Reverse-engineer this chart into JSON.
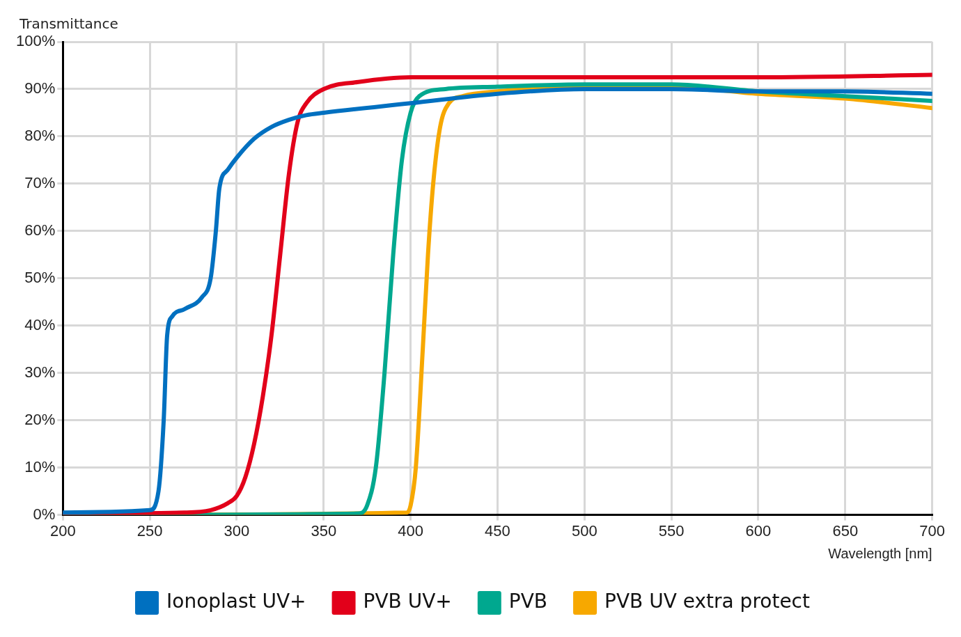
{
  "chart_data": {
    "type": "line",
    "xlabel": "Wavelength [nm]",
    "ylabel": "Transmittance",
    "xlim": [
      200,
      700
    ],
    "xticks": [
      200,
      250,
      300,
      350,
      400,
      450,
      500,
      550,
      600,
      650,
      700
    ],
    "ylim": [
      0,
      100
    ],
    "yticks": [
      {
        "value": 0,
        "label": "0%"
      },
      {
        "value": 10,
        "label": "10%"
      },
      {
        "value": 20,
        "label": "20%"
      },
      {
        "value": 30,
        "label": "30%"
      },
      {
        "value": 40,
        "label": "40%"
      },
      {
        "value": 50,
        "label": "50%"
      },
      {
        "value": 60,
        "label": "60%"
      },
      {
        "value": 70,
        "label": "70%"
      },
      {
        "value": 80,
        "label": "80%"
      },
      {
        "value": 90,
        "label": "90%"
      },
      {
        "value": 100,
        "label": "100%"
      }
    ],
    "grid": true,
    "legend": "bottom",
    "marker": "none",
    "line_style": "solid",
    "series": [
      {
        "name": "Ionoplast UV+",
        "color": "#0070c0",
        "x": [
          200,
          250,
          255,
          258,
          260,
          263,
          270,
          280,
          285,
          288,
          290,
          295,
          300,
          310,
          320,
          330,
          340,
          350,
          400,
          450,
          500,
          550,
          600,
          650,
          700
        ],
        "values": [
          0.5,
          1,
          5,
          20,
          38,
          42,
          43.5,
          46,
          50,
          60,
          69,
          73,
          75.5,
          79.5,
          82,
          83.5,
          84.5,
          85,
          87,
          89,
          90,
          90,
          89.5,
          89.5,
          89
        ]
      },
      {
        "name": "PVB UV+",
        "color": "#e2001a",
        "x": [
          200,
          270,
          285,
          295,
          300,
          305,
          310,
          315,
          320,
          325,
          330,
          335,
          340,
          350,
          370,
          400,
          450,
          500,
          600,
          700
        ],
        "values": [
          0.3,
          0.5,
          1,
          2.5,
          4,
          8,
          15,
          25,
          38,
          55,
          72,
          83,
          87,
          90,
          91.5,
          92.5,
          92.5,
          92.5,
          92.5,
          93
        ]
      },
      {
        "name": "PVB",
        "color": "#00a88f",
        "x": [
          200,
          370,
          375,
          380,
          385,
          390,
          395,
          400,
          405,
          420,
          450,
          500,
          550,
          600,
          650,
          700
        ],
        "values": [
          0,
          0.3,
          2,
          10,
          30,
          55,
          75,
          85,
          88.5,
          90,
          90.5,
          91,
          91,
          89.5,
          88.5,
          87.5
        ]
      },
      {
        "name": "PVB UV extra protect",
        "color": "#f7a800",
        "x": [
          200,
          398,
          400,
          403,
          407,
          410,
          413,
          417,
          422,
          430,
          450,
          500,
          550,
          600,
          650,
          700
        ],
        "values": [
          0,
          0.5,
          2,
          10,
          35,
          55,
          70,
          82,
          87,
          88.5,
          89.5,
          90.5,
          90.5,
          89,
          88,
          86
        ]
      }
    ]
  }
}
